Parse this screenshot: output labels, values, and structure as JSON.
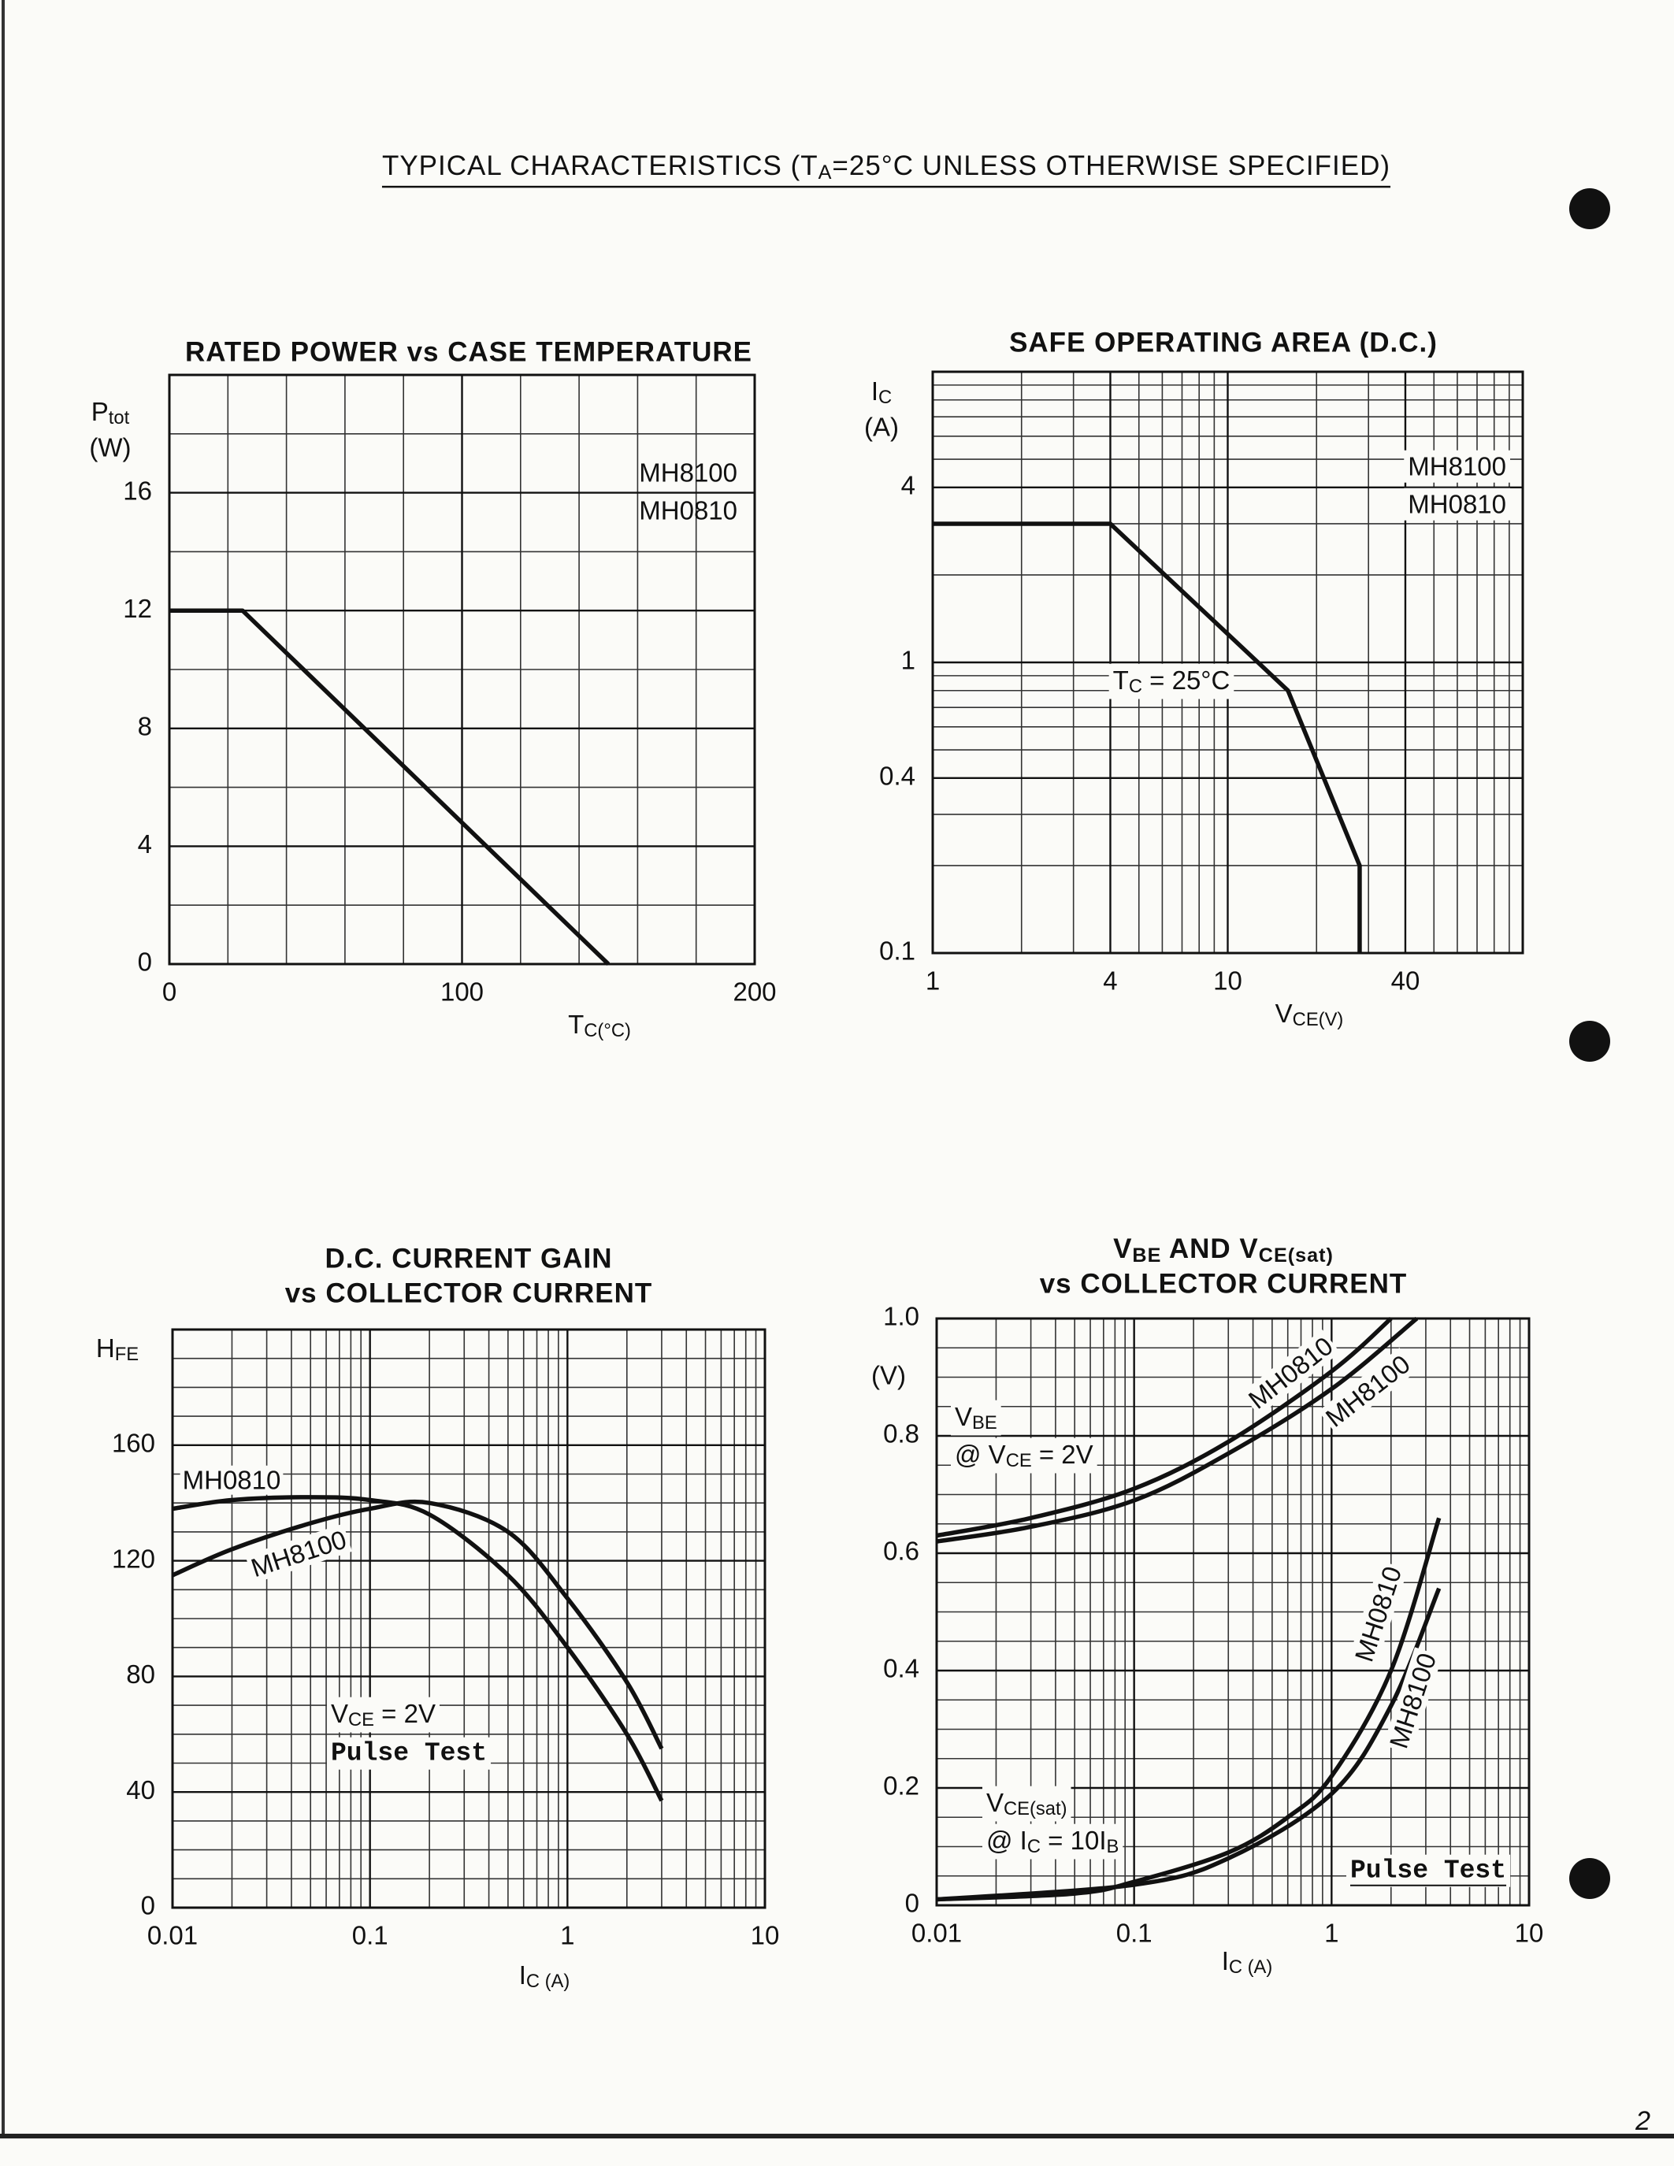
{
  "header": {
    "title": [
      "TYPICAL CHARACTERISTICS (T",
      "A",
      "=25°C UNLESS OTHERWISE SPECIFIED)"
    ]
  },
  "page_number": "2",
  "chart_data": [
    {
      "type": "line",
      "title": [
        "RATED POWER vs CASE TEMPERATURE"
      ],
      "xlabel": [
        "T",
        "C(°C)"
      ],
      "ylabel": [
        [
          "P",
          "tot"
        ],
        "(W)"
      ],
      "xlim": [
        0,
        200
      ],
      "xticks": [
        0,
        100,
        200
      ],
      "ylim": [
        0,
        20
      ],
      "yticks": [
        0,
        4,
        8,
        12,
        16
      ],
      "grid": true,
      "annotations": [
        {
          "lines": [
            "MH8100",
            "MH0810"
          ]
        }
      ],
      "series": [
        {
          "color": "#111111",
          "x": [
            0,
            25,
            150
          ],
          "values": [
            12,
            12,
            0
          ]
        }
      ]
    },
    {
      "type": "line",
      "title": [
        "SAFE OPERATING AREA (D.C.)"
      ],
      "xlabel": [
        "V",
        "CE(V)"
      ],
      "ylabel": [
        [
          "I",
          "C"
        ],
        "(A)"
      ],
      "xscale": "log",
      "yscale": "log",
      "xlim": [
        1,
        100
      ],
      "xticks": [
        1,
        4,
        10,
        40
      ],
      "ylim": [
        0.1,
        10
      ],
      "yticks": [
        0.1,
        0.4,
        1,
        4
      ],
      "grid": true,
      "annotations": [
        {
          "lines": [
            "MH8100",
            "MH0810"
          ]
        },
        {
          "lines": [
            [
              "T",
              "C",
              " = 25°C"
            ]
          ]
        }
      ],
      "series": [
        {
          "color": "#111111",
          "x": [
            1,
            4,
            16,
            28,
            28
          ],
          "values": [
            3,
            3,
            0.8,
            0.2,
            0.1
          ]
        }
      ]
    },
    {
      "type": "line",
      "title": [
        "D.C. CURRENT GAIN",
        "vs COLLECTOR CURRENT"
      ],
      "xlabel": [
        "I",
        "C (A)"
      ],
      "ylabel": [
        [
          "H",
          "FE"
        ]
      ],
      "xscale": "log",
      "smooth": true,
      "xlim": [
        0.01,
        10
      ],
      "xticks": [
        0.01,
        0.1,
        1,
        10
      ],
      "ylim": [
        0,
        200
      ],
      "yticks": [
        0,
        40,
        80,
        120,
        160
      ],
      "grid": true,
      "annotations": [
        {
          "lines": [
            [
              "V",
              "CE",
              " = 2V"
            ],
            "Pulse Test"
          ]
        }
      ],
      "series": [
        {
          "name": "MH0810",
          "color": "#111111",
          "x": [
            0.01,
            0.02,
            0.05,
            0.1,
            0.2,
            0.5,
            1,
            2,
            3
          ],
          "values": [
            138,
            141,
            142,
            141,
            136,
            115,
            90,
            60,
            37
          ]
        },
        {
          "name": "MH8100",
          "color": "#111111",
          "x": [
            0.01,
            0.02,
            0.05,
            0.1,
            0.2,
            0.5,
            1,
            2,
            3
          ],
          "values": [
            115,
            124,
            133,
            138,
            140,
            130,
            107,
            78,
            55
          ]
        }
      ]
    },
    {
      "type": "line",
      "title": [
        [
          "V",
          "BE",
          " AND V",
          "CE(sat)"
        ],
        "vs COLLECTOR CURRENT"
      ],
      "xlabel": [
        "I",
        "C (A)"
      ],
      "ylabel": [
        "(V)"
      ],
      "xscale": "log",
      "smooth": true,
      "xlim": [
        0.01,
        10
      ],
      "xticks": [
        0.01,
        0.1,
        1,
        10
      ],
      "ylim": [
        0,
        1
      ],
      "yticks": [
        0,
        0.2,
        0.4,
        0.6,
        0.8,
        {
          "value": 1,
          "label": "1.0"
        }
      ],
      "grid": true,
      "annotations": [
        {
          "lines": [
            [
              "V",
              "BE"
            ],
            [
              "@ V",
              "CE",
              " = 2V"
            ]
          ]
        },
        {
          "lines": [
            [
              "V",
              "CE(sat)"
            ],
            [
              "@ I",
              "C",
              " = 10I",
              "B"
            ]
          ]
        },
        {
          "lines": [
            "Pulse Test"
          ]
        }
      ],
      "series": [
        {
          "name": "MH0810",
          "color": "#111111",
          "x": [
            0.01,
            0.03,
            0.1,
            0.3,
            1,
            2
          ],
          "values": [
            0.63,
            0.66,
            0.71,
            0.79,
            0.91,
            1.0
          ]
        },
        {
          "name": "MH8100",
          "color": "#111111",
          "x": [
            0.01,
            0.03,
            0.1,
            0.3,
            1,
            2.7
          ],
          "values": [
            0.62,
            0.645,
            0.69,
            0.77,
            0.88,
            1.0
          ]
        },
        {
          "name": "MH0810",
          "color": "#111111",
          "x": [
            0.01,
            0.05,
            0.1,
            0.3,
            0.6,
            1,
            2,
            3.5
          ],
          "values": [
            0.01,
            0.02,
            0.04,
            0.09,
            0.15,
            0.22,
            0.4,
            0.66
          ]
        },
        {
          "name": "MH8100",
          "color": "#111111",
          "x": [
            0.01,
            0.1,
            0.3,
            1,
            2,
            3.5
          ],
          "values": [
            0.01,
            0.035,
            0.08,
            0.19,
            0.34,
            0.54
          ]
        }
      ]
    }
  ]
}
